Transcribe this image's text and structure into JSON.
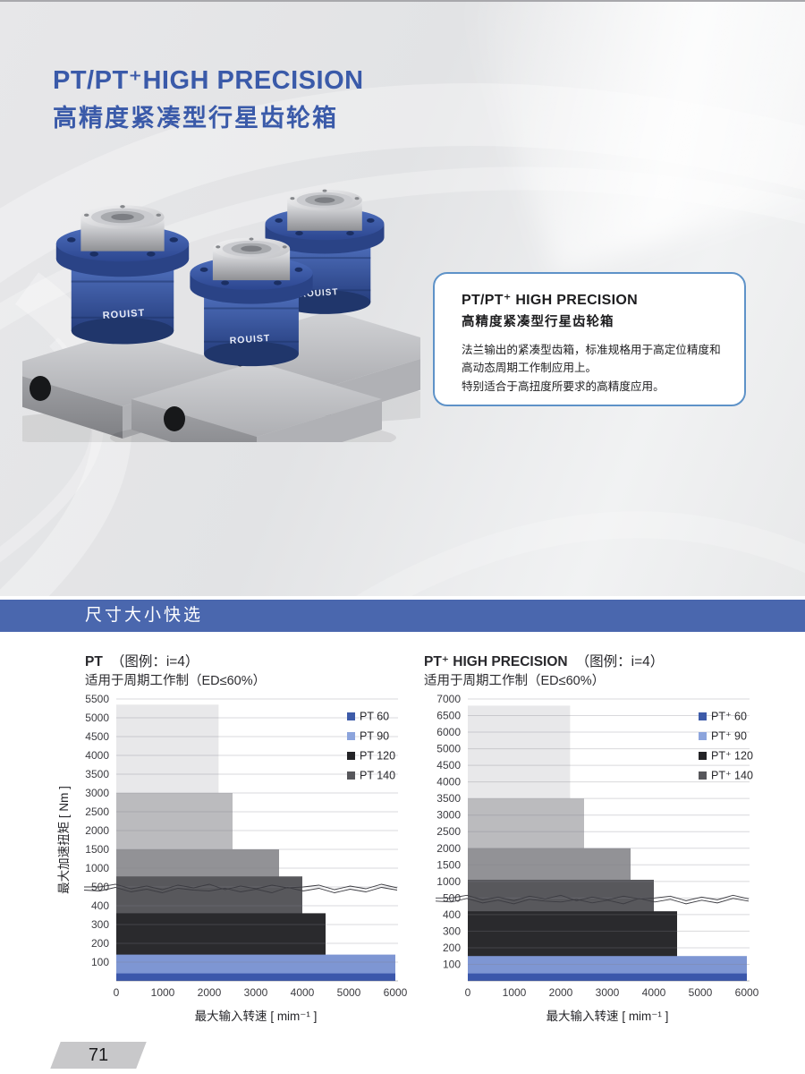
{
  "header": {
    "title_en": "PT/PT⁺HIGH PRECISION",
    "title_cn": "高精度紧凑型行星齿轮箱"
  },
  "product": {
    "brand": "ROUIST"
  },
  "info_box": {
    "title_en": "PT/PT⁺ HIGH PRECISION",
    "title_cn": "高精度紧凑型行星齿轮箱",
    "body_1": "法兰输出的紧凑型齿箱，标准规格用于高定位精度和高动态周期工作制应用上。",
    "body_2": "特别适合于高扭度所要求的高精度应用。"
  },
  "section_banner": {
    "label": "尺寸大小快选"
  },
  "colors": {
    "accent_blue": "#3A5AA9",
    "banner_blue": "#4A67AE",
    "info_border_blue": "#5E92C8"
  },
  "page_number": "71",
  "chart_data": [
    {
      "type": "bar",
      "title_main": "PT",
      "title_note": "（图例：i=4）",
      "subtitle": "适用于周期工作制（ED≤60%）",
      "ylabel": "最大加速扭矩 [ Nm ]",
      "xlabel": "最大输入转速 [ mim⁻¹ ]",
      "y_tick_labels": [
        "5500",
        "5000",
        "4500",
        "4000",
        "3500",
        "3000",
        "2500",
        "2000",
        "1500",
        "1000",
        "500",
        "400",
        "300",
        "200",
        "100"
      ],
      "x_tick_labels": [
        "0",
        "1000",
        "2000",
        "3000",
        "4000",
        "5000",
        "6000"
      ],
      "x_max": 6000,
      "axis_break_at_label": "500",
      "grid": true,
      "legend_position": "top-right",
      "legend": [
        {
          "label": "PT 60",
          "color": "#3d5ba9"
        },
        {
          "label": "PT 90",
          "color": "#8ca4dc"
        },
        {
          "label": "PT 120",
          "color": "#232326"
        },
        {
          "label": "PT 140",
          "color": "#57575b"
        }
      ],
      "series": [
        {
          "name": "gray-band-xl",
          "torque_nm": 5350,
          "max_speed": 2200,
          "color": "#e8e8ea"
        },
        {
          "name": "gray-band-l",
          "torque_nm": 3000,
          "max_speed": 2500,
          "color": "#bbbbbe"
        },
        {
          "name": "gray-band-m",
          "torque_nm": 1500,
          "max_speed": 3500,
          "color": "#929296"
        },
        {
          "name": "PT 140",
          "torque_nm": 780,
          "max_speed": 4000,
          "color": "#58585c"
        },
        {
          "name": "PT 120",
          "torque_nm": 360,
          "max_speed": 4500,
          "color": "#2a2a2d"
        },
        {
          "name": "PT 90",
          "torque_nm": 140,
          "max_speed": 6000,
          "color": "#7e96d3"
        },
        {
          "name": "PT 60",
          "torque_nm": 40,
          "max_speed": 6000,
          "color": "#3b57ab"
        }
      ]
    },
    {
      "type": "bar",
      "title_main": "PT⁺ HIGH PRECISION",
      "title_note": "（图例：i=4）",
      "subtitle": "适用于周期工作制（ED≤60%）",
      "ylabel": "",
      "xlabel": "最大输入转速 [ mim⁻¹ ]",
      "y_tick_labels": [
        "7000",
        "6500",
        "6000",
        "5000",
        "4500",
        "4000",
        "3500",
        "3000",
        "2500",
        "2000",
        "1500",
        "1000",
        "500",
        "400",
        "300",
        "200",
        "100"
      ],
      "x_tick_labels": [
        "0",
        "1000",
        "2000",
        "3000",
        "4000",
        "5000",
        "6000"
      ],
      "x_max": 6000,
      "axis_break_at_label": "500",
      "grid": true,
      "legend_position": "top-right",
      "legend": [
        {
          "label": "PT⁺ 60",
          "color": "#3d5ba9"
        },
        {
          "label": "PT⁺ 90",
          "color": "#8ca4dc"
        },
        {
          "label": "PT⁺ 120",
          "color": "#232326"
        },
        {
          "label": "PT⁺ 140",
          "color": "#57575b"
        }
      ],
      "series": [
        {
          "name": "gray-band-xl",
          "torque_nm": 6800,
          "max_speed": 2200,
          "color": "#e8e8ea"
        },
        {
          "name": "gray-band-l",
          "torque_nm": 3500,
          "max_speed": 2500,
          "color": "#bbbbbe"
        },
        {
          "name": "gray-band-m",
          "torque_nm": 2000,
          "max_speed": 3500,
          "color": "#929296"
        },
        {
          "name": "PT⁺ 140",
          "torque_nm": 1050,
          "max_speed": 4000,
          "color": "#58585c"
        },
        {
          "name": "PT⁺ 120",
          "torque_nm": 420,
          "max_speed": 4500,
          "color": "#2a2a2d"
        },
        {
          "name": "PT⁺ 90",
          "torque_nm": 150,
          "max_speed": 6000,
          "color": "#7e96d3"
        },
        {
          "name": "PT⁺ 60",
          "torque_nm": 45,
          "max_speed": 6000,
          "color": "#3b57ab"
        }
      ]
    }
  ]
}
